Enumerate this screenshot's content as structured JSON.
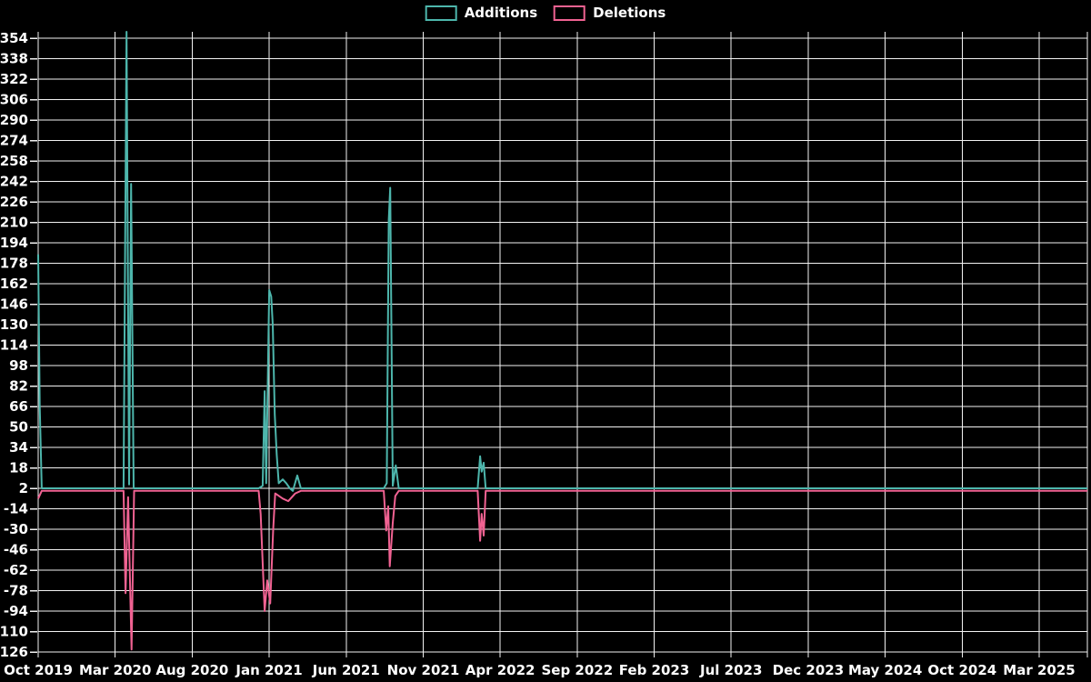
{
  "page": {
    "background": "#000000",
    "grid_color": "#f2f2f2",
    "text_color": "#ffffff"
  },
  "legend": {
    "items": [
      {
        "label": "Additions",
        "color": "#4DB6AC"
      },
      {
        "label": "Deletions",
        "color": "#F06292"
      }
    ]
  },
  "chart_data": {
    "type": "line",
    "title": "",
    "xlabel": "",
    "ylabel": "",
    "grid": true,
    "legend_position": "top-center",
    "x_axis": {
      "tick_labels": [
        "Oct 2019",
        "Mar 2020",
        "Aug 2020",
        "Jan 2021",
        "Jun 2021",
        "Nov 2021",
        "Apr 2022",
        "Sep 2022",
        "Feb 2023",
        "Jul 2023",
        "Dec 2023",
        "May 2024",
        "Oct 2024",
        "Mar 2025"
      ],
      "domain": [
        "2019-10-06",
        "2025-06-25"
      ]
    },
    "y_axis": {
      "tick_labels": [
        354,
        338,
        322,
        306,
        290,
        274,
        258,
        242,
        226,
        210,
        194,
        178,
        162,
        146,
        130,
        114,
        98,
        82,
        66,
        50,
        34,
        18,
        2,
        -14,
        -30,
        -46,
        -62,
        -78,
        -94,
        -110,
        -126
      ],
      "tick_step": 16,
      "min": -126,
      "max": 354
    },
    "series": [
      {
        "name": "Additions",
        "color": "#4DB6AC",
        "points": [
          [
            "2019-10-06",
            185
          ],
          [
            "2019-10-09",
            66
          ],
          [
            "2019-10-13",
            2
          ],
          [
            "2020-03-24",
            2
          ],
          [
            "2020-03-30",
            359
          ],
          [
            "2020-04-04",
            5
          ],
          [
            "2020-04-08",
            240
          ],
          [
            "2020-04-13",
            2
          ],
          [
            "2020-12-18",
            2
          ],
          [
            "2020-12-26",
            4
          ],
          [
            "2020-12-30",
            78
          ],
          [
            "2021-01-02",
            6
          ],
          [
            "2021-01-08",
            157
          ],
          [
            "2021-01-12",
            152
          ],
          [
            "2021-01-15",
            130
          ],
          [
            "2021-01-19",
            60
          ],
          [
            "2021-01-23",
            28
          ],
          [
            "2021-01-27",
            6
          ],
          [
            "2021-02-04",
            9
          ],
          [
            "2021-02-11",
            6
          ],
          [
            "2021-02-18",
            2
          ],
          [
            "2021-02-24",
            0
          ],
          [
            "2021-03-05",
            12
          ],
          [
            "2021-03-12",
            2
          ],
          [
            "2021-08-24",
            2
          ],
          [
            "2021-08-30",
            6
          ],
          [
            "2021-09-03",
            212
          ],
          [
            "2021-09-06",
            237
          ],
          [
            "2021-09-11",
            4
          ],
          [
            "2021-09-17",
            20
          ],
          [
            "2021-09-23",
            2
          ],
          [
            "2022-02-27",
            2
          ],
          [
            "2022-03-04",
            27
          ],
          [
            "2022-03-07",
            15
          ],
          [
            "2022-03-11",
            22
          ],
          [
            "2022-03-15",
            2
          ],
          [
            "2025-06-25",
            2
          ]
        ]
      },
      {
        "name": "Deletions",
        "color": "#F06292",
        "points": [
          [
            "2019-10-06",
            -6
          ],
          [
            "2019-10-13",
            0
          ],
          [
            "2020-03-24",
            0
          ],
          [
            "2020-03-28",
            -80
          ],
          [
            "2020-04-02",
            -5
          ],
          [
            "2020-04-09",
            -124
          ],
          [
            "2020-04-14",
            0
          ],
          [
            "2020-12-18",
            0
          ],
          [
            "2020-12-22",
            -18
          ],
          [
            "2020-12-30",
            -94
          ],
          [
            "2021-01-04",
            -70
          ],
          [
            "2021-01-10",
            -88
          ],
          [
            "2021-01-16",
            -30
          ],
          [
            "2021-01-20",
            -2
          ],
          [
            "2021-02-04",
            -6
          ],
          [
            "2021-02-15",
            -8
          ],
          [
            "2021-03-01",
            -2
          ],
          [
            "2021-03-12",
            0
          ],
          [
            "2021-08-24",
            0
          ],
          [
            "2021-08-29",
            -31
          ],
          [
            "2021-09-02",
            -12
          ],
          [
            "2021-09-05",
            -59
          ],
          [
            "2021-09-11",
            -25
          ],
          [
            "2021-09-16",
            -4
          ],
          [
            "2021-09-23",
            0
          ],
          [
            "2022-02-27",
            0
          ],
          [
            "2022-03-04",
            -39
          ],
          [
            "2022-03-07",
            -18
          ],
          [
            "2022-03-11",
            -35
          ],
          [
            "2022-03-15",
            0
          ],
          [
            "2025-06-25",
            0
          ]
        ]
      }
    ]
  }
}
